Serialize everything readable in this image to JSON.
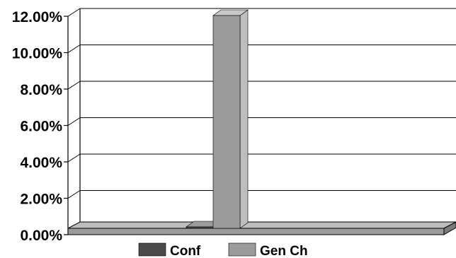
{
  "chart_data": {
    "type": "bar",
    "subtype": "3d-clustered",
    "categories": [
      ""
    ],
    "series": [
      {
        "name": "Conf",
        "values": [
          0.0015
        ],
        "color": "#4a4a4a"
      },
      {
        "name": "Gen Ch",
        "values": [
          0.12
        ],
        "color": "#9b9b9b"
      }
    ],
    "ylim": [
      0,
      0.12
    ],
    "yticks": [
      "0.00%",
      "2.00%",
      "4.00%",
      "6.00%",
      "8.00%",
      "10.00%",
      "12.00%"
    ],
    "grid": true,
    "legend_position": "bottom",
    "title": "",
    "xlabel": "",
    "ylabel": ""
  }
}
